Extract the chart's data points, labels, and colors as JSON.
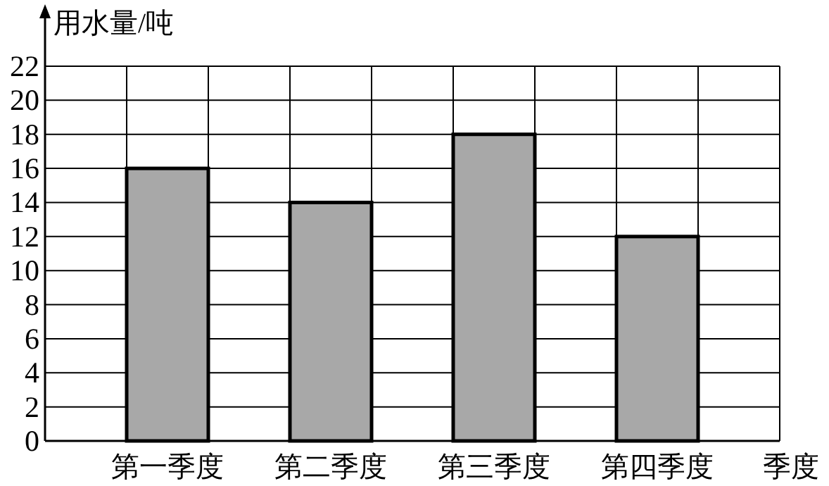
{
  "chart_data": {
    "type": "bar",
    "xlabel": "季度",
    "ylabel": "用水量/吨",
    "categories": [
      "第一季度",
      "第二季度",
      "第三季度",
      "第四季度"
    ],
    "values": [
      16,
      14,
      18,
      12
    ],
    "color": "#a8a8a8",
    "ylim": [
      0,
      22
    ],
    "yticks": [
      0,
      2,
      4,
      6,
      8,
      10,
      12,
      14,
      16,
      18,
      20,
      22
    ],
    "grid": true
  }
}
